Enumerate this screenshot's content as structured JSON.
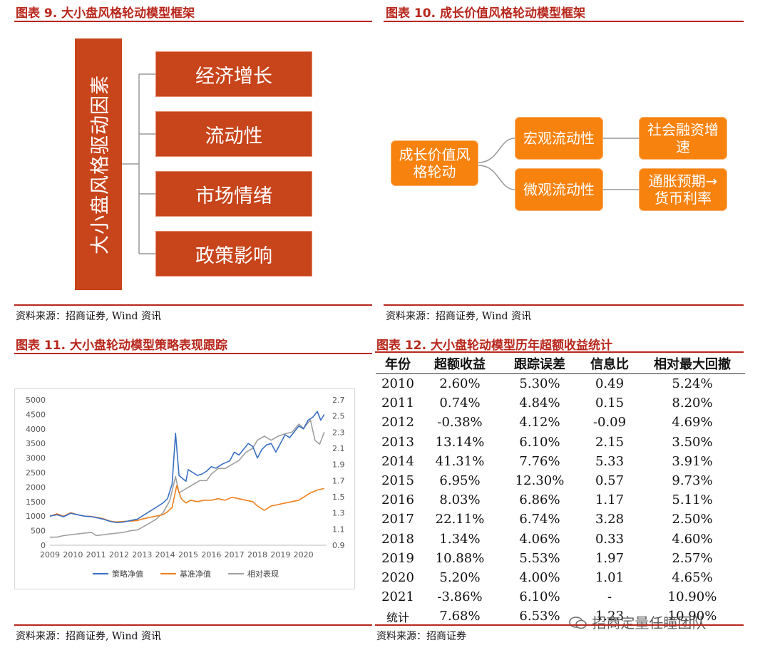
{
  "fig9": {
    "title": "图表 9. 大小盘风格轮动模型框架",
    "root": "大小盘风格驱动因素",
    "factors": [
      "经济增长",
      "流动性",
      "市场情绪",
      "政策影响"
    ],
    "source": "资料来源：招商证券, Wind 资讯"
  },
  "fig10": {
    "title": "图表 10. 成长价值风格轮动模型框架",
    "root": "成长价值风格轮动",
    "mid": [
      "宏观流动性",
      "微观流动性"
    ],
    "leaf": [
      "社会融资增速",
      "通胀预期→货币利率"
    ],
    "source": "资料来源：招商证券, Wind 资讯"
  },
  "fig11": {
    "title": "图表 11. 大小盘轮动模型策略表现跟踪",
    "source": "资料来源：招商证券, Wind 资讯"
  },
  "fig12": {
    "title": "图表 12. 大小盘轮动模型历年超额收益统计",
    "headers": [
      "年份",
      "超额收益",
      "跟踪误差",
      "信息比",
      "相对最大回撤"
    ],
    "rows": [
      [
        "2010",
        "2.60%",
        "5.30%",
        "0.49",
        "5.24%"
      ],
      [
        "2011",
        "0.74%",
        "4.84%",
        "0.15",
        "8.20%"
      ],
      [
        "2012",
        "-0.38%",
        "4.12%",
        "-0.09",
        "4.69%"
      ],
      [
        "2013",
        "13.14%",
        "6.10%",
        "2.15",
        "3.50%"
      ],
      [
        "2014",
        "41.31%",
        "7.76%",
        "5.33",
        "3.91%"
      ],
      [
        "2015",
        "6.95%",
        "12.30%",
        "0.57",
        "9.73%"
      ],
      [
        "2016",
        "8.03%",
        "6.86%",
        "1.17",
        "5.11%"
      ],
      [
        "2017",
        "22.11%",
        "6.74%",
        "3.28",
        "2.50%"
      ],
      [
        "2018",
        "1.34%",
        "4.06%",
        "0.33",
        "4.60%"
      ],
      [
        "2019",
        "10.88%",
        "5.53%",
        "1.97",
        "2.57%"
      ],
      [
        "2020",
        "5.20%",
        "4.00%",
        "1.01",
        "4.65%"
      ],
      [
        "2021",
        "-3.86%",
        "6.10%",
        "-",
        "10.90%"
      ],
      [
        "统计",
        "7.68%",
        "6.53%",
        "1.23",
        "10.90%"
      ]
    ],
    "source": "资料来源：招商证券"
  },
  "watermark": "招商定量任瞳团队",
  "colors": {
    "accent": "#b8271c",
    "box": "#c8441b",
    "orange": "#f8820e",
    "strategy": "#3a6fc4",
    "benchmark": "#f07f1b",
    "relative": "#a0a0a0"
  },
  "chart_data": {
    "type": "line",
    "title": "",
    "x": [
      2009,
      2010,
      2011,
      2012,
      2013,
      2014,
      2015,
      2016,
      2017,
      2018,
      2019,
      2020
    ],
    "x_ticks": [
      "2009",
      "2010",
      "2011",
      "2012",
      "2013",
      "2014",
      "2015",
      "2016",
      "2017",
      "2018",
      "2019",
      "2020"
    ],
    "y_left_ticks": [
      "0",
      "500",
      "1000",
      "1500",
      "2000",
      "2500",
      "3000",
      "3500",
      "4000",
      "4500",
      "5000"
    ],
    "y_right_ticks": [
      "0.9",
      "1.1",
      "1.3",
      "1.5",
      "1.7",
      "1.9",
      "2.1",
      "2.3",
      "2.5",
      "2.7"
    ],
    "ylim_left": [
      0,
      5000
    ],
    "ylim_right": [
      0.9,
      2.7
    ],
    "legend_position": "bottom",
    "series": [
      {
        "name": "策略净值",
        "axis": "left",
        "x": [
          2009.0,
          2009.3,
          2009.6,
          2009.9,
          2010.2,
          2010.5,
          2010.8,
          2011.0,
          2011.3,
          2011.6,
          2011.9,
          2012.2,
          2012.5,
          2012.8,
          2013.0,
          2013.3,
          2013.6,
          2013.9,
          2014.1,
          2014.3,
          2014.45,
          2014.6,
          2014.75,
          2014.9,
          2015.0,
          2015.2,
          2015.4,
          2015.6,
          2015.8,
          2016.0,
          2016.2,
          2016.5,
          2016.8,
          2017.0,
          2017.2,
          2017.4,
          2017.6,
          2017.8,
          2018.0,
          2018.2,
          2018.4,
          2018.6,
          2018.8,
          2019.0,
          2019.2,
          2019.4,
          2019.6,
          2019.8,
          2020.0,
          2020.2,
          2020.4,
          2020.6,
          2020.75,
          2020.9
        ],
        "values": [
          1000,
          1050,
          980,
          1100,
          1050,
          1000,
          980,
          950,
          900,
          820,
          780,
          800,
          850,
          900,
          1000,
          1150,
          1300,
          1450,
          1600,
          2100,
          3850,
          2400,
          2300,
          2200,
          2600,
          2500,
          2400,
          2450,
          2550,
          2700,
          2650,
          2800,
          2900,
          3200,
          3100,
          3300,
          3500,
          3400,
          3000,
          3300,
          3450,
          3500,
          3200,
          3500,
          3800,
          3700,
          3900,
          4100,
          4000,
          4300,
          4400,
          4600,
          4300,
          4500
        ]
      },
      {
        "name": "基准净值",
        "axis": "left",
        "x": [
          2009.0,
          2009.3,
          2009.6,
          2009.9,
          2010.2,
          2010.5,
          2010.8,
          2011.0,
          2011.3,
          2011.6,
          2011.9,
          2012.2,
          2012.5,
          2012.8,
          2013.0,
          2013.3,
          2013.6,
          2013.9,
          2014.1,
          2014.3,
          2014.5,
          2014.7,
          2014.9,
          2015.1,
          2015.4,
          2015.7,
          2016.0,
          2016.3,
          2016.6,
          2016.9,
          2017.2,
          2017.5,
          2017.8,
          2018.0,
          2018.3,
          2018.6,
          2018.9,
          2019.2,
          2019.5,
          2019.8,
          2020.0,
          2020.3,
          2020.6,
          2020.9
        ],
        "values": [
          1000,
          1080,
          1000,
          1120,
          1050,
          1000,
          990,
          960,
          920,
          830,
          800,
          820,
          830,
          850,
          900,
          950,
          1000,
          1050,
          1150,
          1300,
          2050,
          1600,
          1450,
          1550,
          1500,
          1550,
          1550,
          1600,
          1550,
          1650,
          1600,
          1550,
          1500,
          1350,
          1200,
          1350,
          1400,
          1450,
          1500,
          1550,
          1650,
          1800,
          1900,
          1950
        ]
      },
      {
        "name": "相对表现",
        "axis": "right",
        "x": [
          2009.0,
          2009.3,
          2009.6,
          2009.9,
          2010.2,
          2010.5,
          2010.8,
          2011.0,
          2011.3,
          2011.6,
          2011.9,
          2012.2,
          2012.5,
          2012.8,
          2013.0,
          2013.3,
          2013.6,
          2013.9,
          2014.2,
          2014.45,
          2014.6,
          2014.9,
          2015.2,
          2015.5,
          2015.8,
          2016.0,
          2016.3,
          2016.6,
          2016.9,
          2017.2,
          2017.5,
          2017.8,
          2018.0,
          2018.3,
          2018.6,
          2018.9,
          2019.2,
          2019.5,
          2019.8,
          2020.0,
          2020.3,
          2020.5,
          2020.7,
          2020.9
        ],
        "values": [
          1.0,
          1.0,
          1.02,
          1.03,
          1.04,
          1.05,
          1.06,
          1.02,
          1.03,
          1.04,
          1.05,
          1.06,
          1.08,
          1.09,
          1.12,
          1.17,
          1.22,
          1.3,
          1.45,
          1.75,
          1.55,
          1.6,
          1.65,
          1.7,
          1.7,
          1.78,
          1.85,
          1.85,
          1.9,
          1.95,
          2.05,
          2.1,
          2.2,
          2.25,
          2.2,
          2.25,
          2.28,
          2.3,
          2.4,
          2.35,
          2.45,
          2.2,
          2.15,
          2.3
        ]
      }
    ]
  }
}
